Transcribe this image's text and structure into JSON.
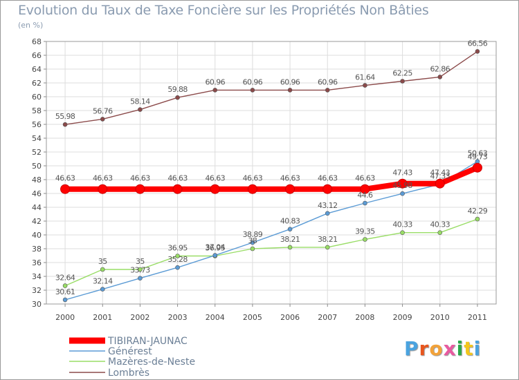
{
  "title": "Evolution du Taux de Taxe Foncière sur les Propriétés Non Bâties",
  "subtitle": "(en %)",
  "brand": "Proxiti",
  "chart_data": {
    "type": "line",
    "title": "Evolution du Taux de Taxe Foncière sur les Propriétés Non Bâties",
    "ylabel": "(en %)",
    "xlabel": "",
    "x": [
      "2000",
      "2001",
      "2002",
      "2003",
      "2004",
      "2005",
      "2006",
      "2007",
      "2008",
      "2009",
      "2010",
      "2011"
    ],
    "ylim": [
      30,
      68
    ],
    "yticks": [
      30,
      32,
      34,
      36,
      38,
      40,
      42,
      44,
      46,
      48,
      50,
      52,
      54,
      56,
      58,
      60,
      62,
      64,
      66,
      68
    ],
    "grid": true,
    "legend": "bottom-left",
    "series": [
      {
        "name": "TIBIRAN-JAUNAC",
        "color": "#ff0000",
        "values": [
          46.63,
          46.63,
          46.63,
          46.63,
          46.63,
          46.63,
          46.63,
          46.63,
          46.63,
          47.43,
          47.43,
          49.73
        ],
        "labels": [
          "46.63",
          "46.63",
          "46.63",
          "46.63",
          "46.63",
          "46.63",
          "46.63",
          "46.63",
          "46.63",
          "47.43",
          "47.43",
          "49.73"
        ]
      },
      {
        "name": "Générest",
        "color": "#5b9bd5",
        "values": [
          30.61,
          32.14,
          33.73,
          35.28,
          37.04,
          38.89,
          40.83,
          43.12,
          44.6,
          45.98,
          47.33,
          50.63
        ],
        "labels": [
          "30.61",
          "32.14",
          "33.73",
          "35.28",
          "37.04",
          "38.89",
          "40.83",
          "43.12",
          "44.6",
          "45.98",
          "47.33",
          "50.63"
        ]
      },
      {
        "name": "Mazères-de-Neste",
        "color": "#99dd66",
        "values": [
          32.64,
          35,
          35,
          36.95,
          36.95,
          38,
          38.21,
          38.21,
          39.35,
          40.33,
          40.33,
          42.29
        ],
        "labels": [
          "32.64",
          "35",
          "35",
          "36.95",
          "36.95",
          "38",
          "38.21",
          "38.21",
          "39.35",
          "40.33",
          "40.33",
          "42.29"
        ]
      },
      {
        "name": "Lombrès",
        "color": "#8b4a4a",
        "values": [
          55.98,
          56.76,
          58.14,
          59.88,
          60.96,
          60.96,
          60.96,
          60.96,
          61.64,
          62.25,
          62.86,
          66.56
        ],
        "labels": [
          "55.98",
          "56.76",
          "58.14",
          "59.88",
          "60.96",
          "60.96",
          "60.96",
          "60.96",
          "61.64",
          "62.25",
          "62.86",
          "66.56"
        ]
      }
    ]
  }
}
